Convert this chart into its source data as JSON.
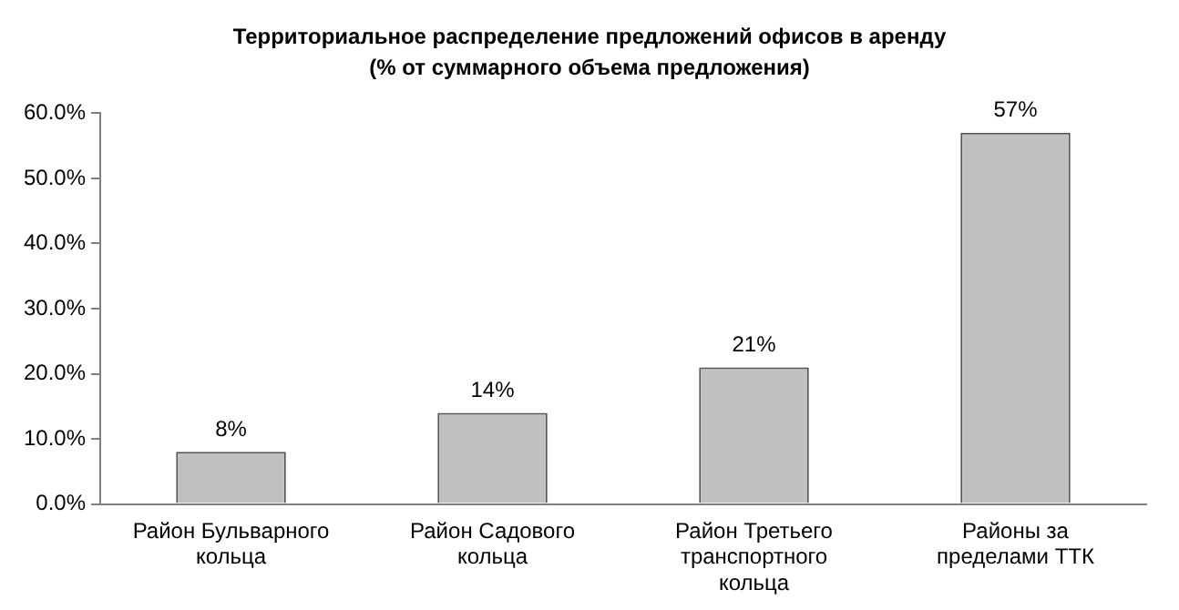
{
  "chart_data": {
    "type": "bar",
    "title": "Территориальное распределение предложений офисов в аренду",
    "subtitle": "(% от суммарного объема предложения)",
    "categories": [
      "Район Бульварного кольца",
      "Район Садового кольца",
      "Район Третьего транспортного кольца",
      "Районы за пределами ТТК"
    ],
    "values": [
      8,
      14,
      21,
      57
    ],
    "color": "#c0c0c0",
    "value_labels": [
      "8%",
      "14%",
      "21%",
      "57%"
    ],
    "ylim": [
      0,
      60
    ],
    "yticks": [
      {
        "value": 0,
        "label": "0.0%"
      },
      {
        "value": 10,
        "label": "10.0%"
      },
      {
        "value": 20,
        "label": "20.0%"
      },
      {
        "value": 30,
        "label": "30.0%"
      },
      {
        "value": 40,
        "label": "40.0%"
      },
      {
        "value": 50,
        "label": "50.0%"
      },
      {
        "value": 60,
        "label": "60.0%"
      }
    ],
    "grid": false,
    "legend": false
  }
}
